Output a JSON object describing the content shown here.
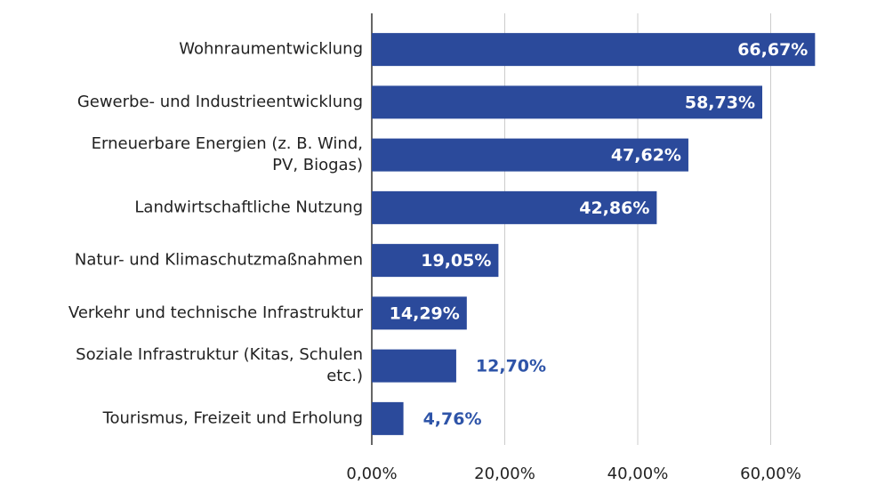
{
  "chart_data": {
    "type": "bar",
    "orientation": "horizontal",
    "categories": [
      "Wohnraumentwicklung",
      "Gewerbe- und Industrieentwicklung",
      "Erneuerbare Energien (z. B. Wind,\nPV, Biogas)",
      "Landwirtschaftliche Nutzung",
      "Natur- und Klimaschutzmaßnahmen",
      "Verkehr und technische Infrastruktur",
      "Soziale Infrastruktur (Kitas, Schulen\netc.)",
      "Tourismus, Freizeit und Erholung"
    ],
    "values": [
      66.67,
      58.73,
      47.62,
      42.86,
      19.05,
      14.29,
      12.7,
      4.76
    ],
    "value_labels": [
      "66,67%",
      "58,73%",
      "47,62%",
      "42,86%",
      "19,05%",
      "14,29%",
      "12,70%",
      "4,76%"
    ],
    "color": "#2b4a9b",
    "label_color_outside": "#2e54a8",
    "xlim": [
      0,
      75
    ],
    "xticks": [
      {
        "value": 0,
        "label": "0,00%"
      },
      {
        "value": 20,
        "label": "20,00%"
      },
      {
        "value": 40,
        "label": "40,00%"
      },
      {
        "value": 60,
        "label": "60,00%"
      }
    ],
    "grid": true
  }
}
